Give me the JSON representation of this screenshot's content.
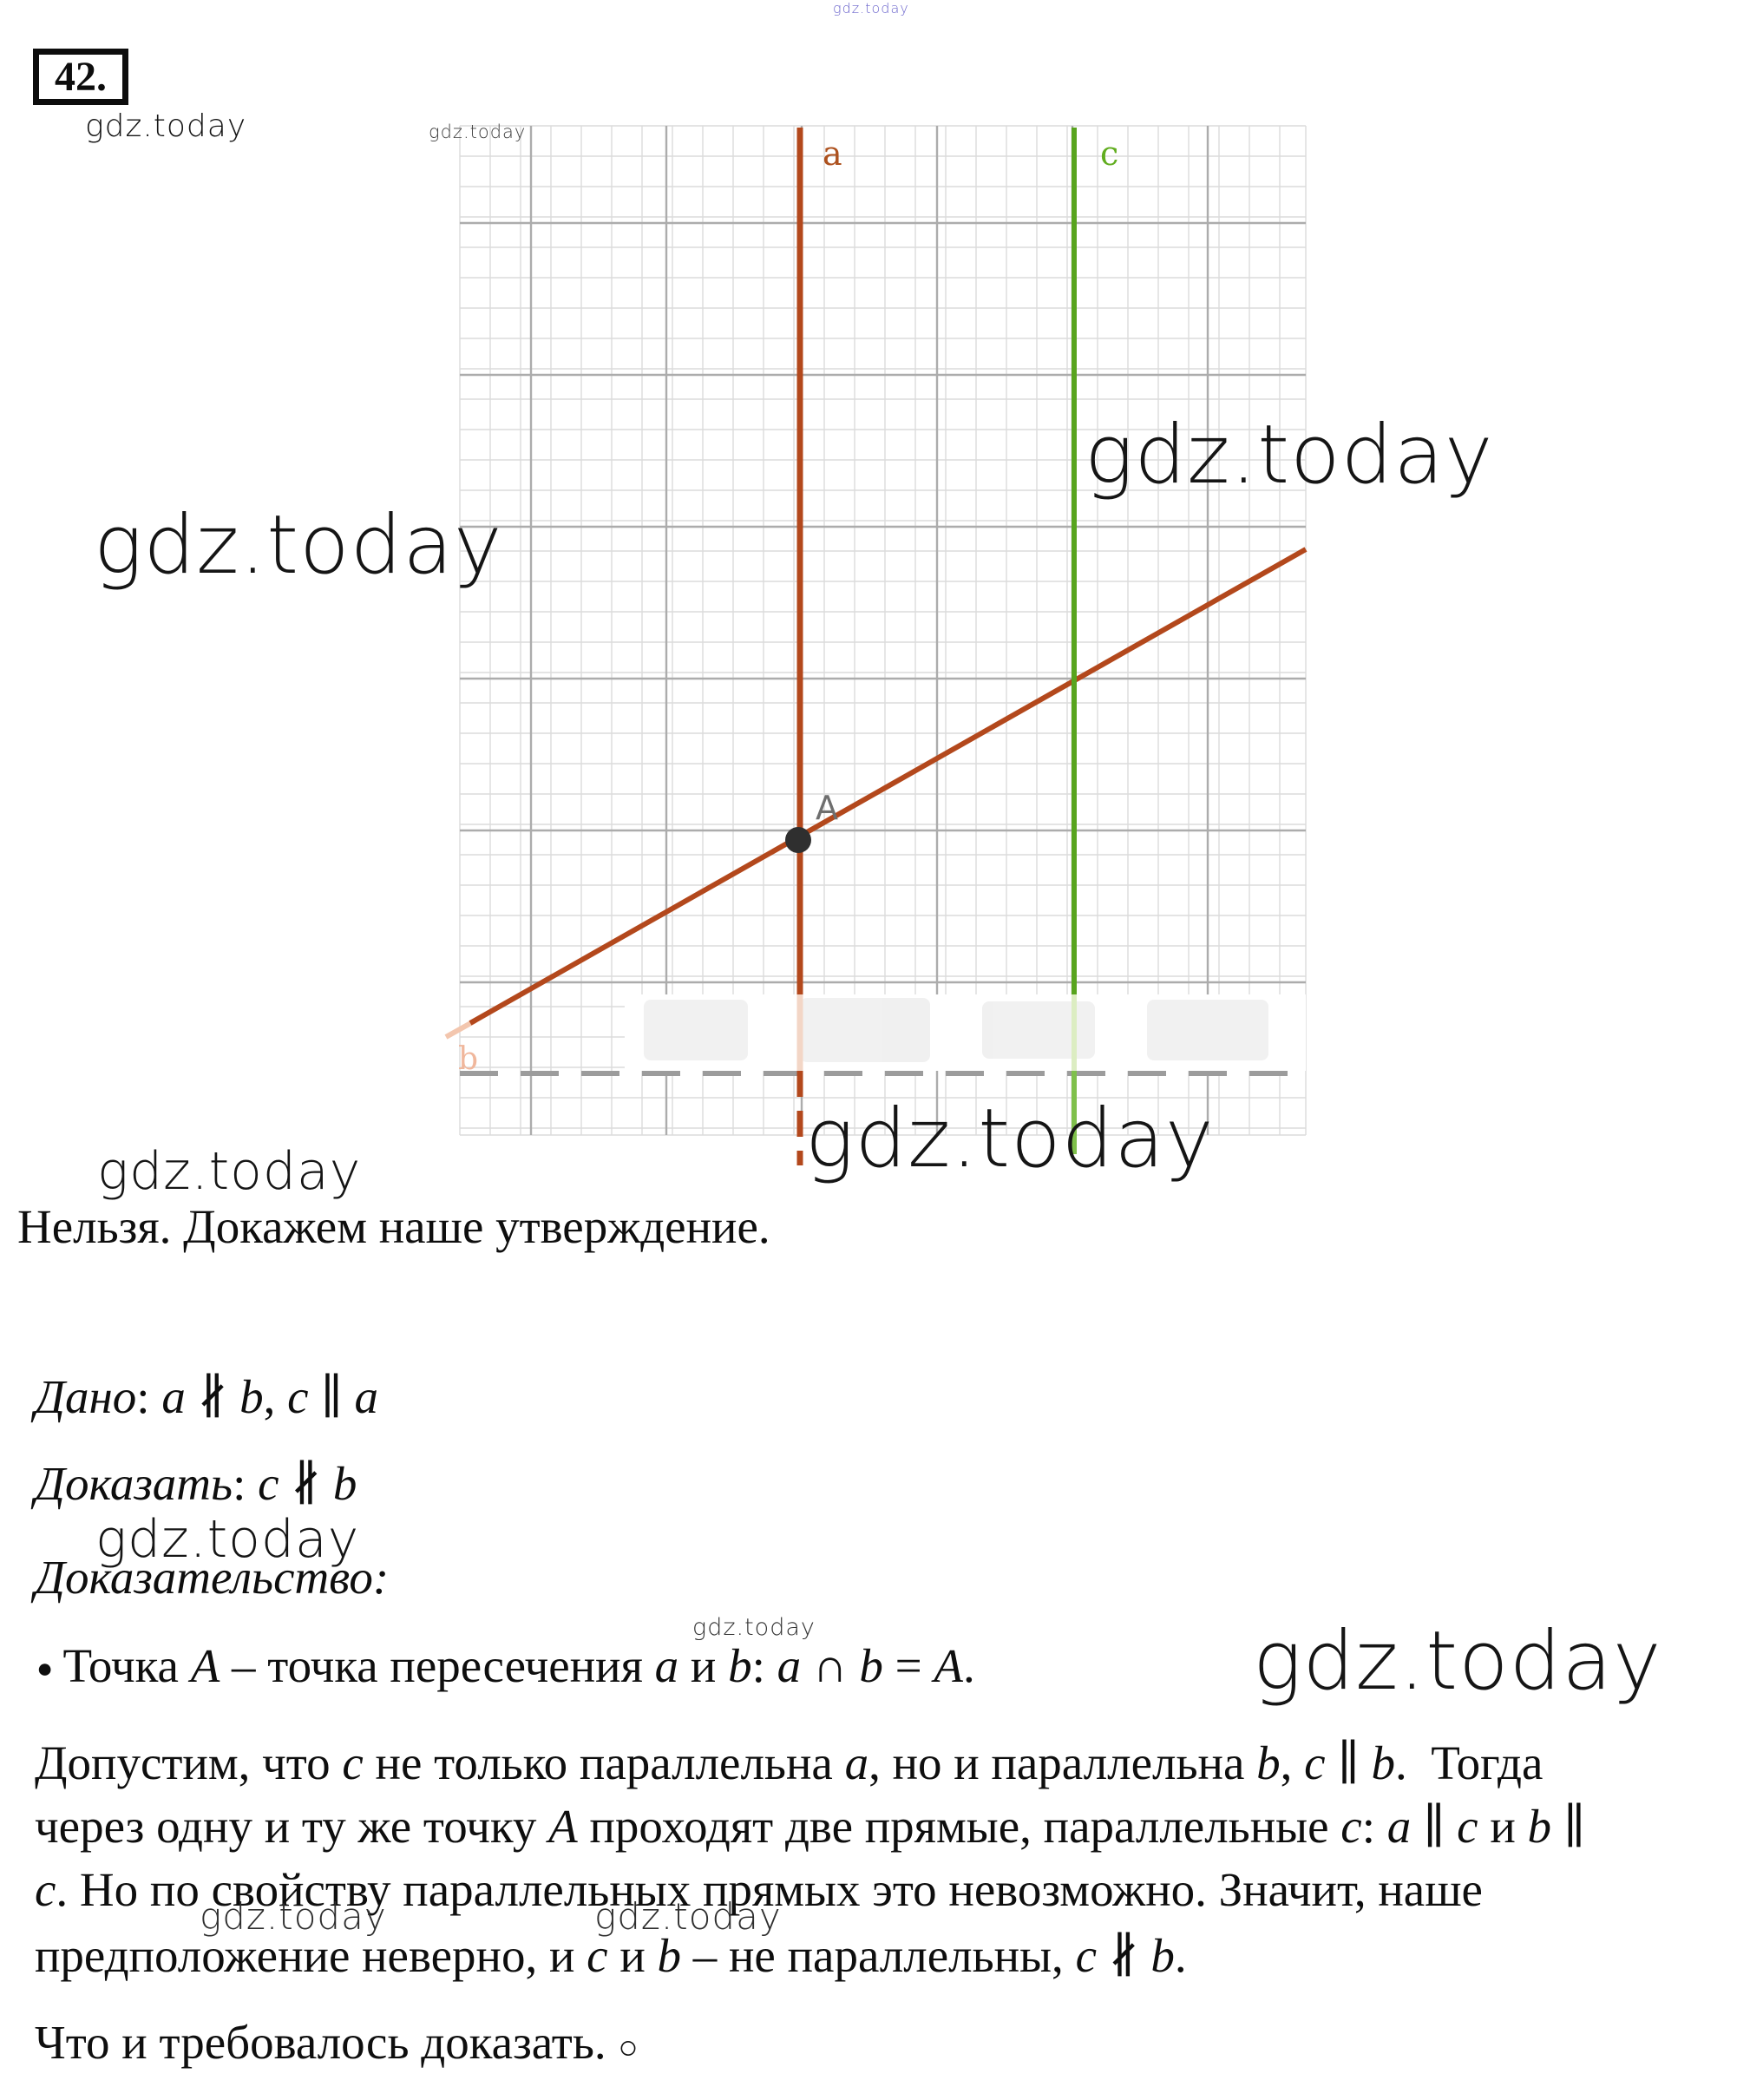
{
  "header": {
    "problem_number": "42."
  },
  "watermark": {
    "text": "gdz.today"
  },
  "figure": {
    "label_a": "a",
    "label_b": "b",
    "label_c": "c",
    "label_point": "A",
    "colors": {
      "line_a": "#b3481c",
      "line_a_pale": "#f3d6c6",
      "line_b": "#b3481c",
      "line_b_tip": "#f3c6ae",
      "line_c": "#58a41e",
      "line_c_pale": "#dcedc2",
      "line_c_light": "#7fc04b",
      "label_a": "#ad511e",
      "label_b": "#f0b79c",
      "label_c": "#61ad1f",
      "point": "#2f2f2f",
      "label_point": "#6e6e6e",
      "grid_light": "#dcdcdc",
      "grid_heavy": "#acacac",
      "dashed_line": "#9c9c9c"
    }
  },
  "page_colors": {
    "text": "#0e0e0e",
    "watermark_dark": "#151515",
    "watermark_blue": "#5952c6"
  },
  "solution": {
    "intro": "Нельзя. Докажем наше утверждение.",
    "given": [
      {
        "t": "Дано",
        "i": true
      },
      {
        "t": ": ",
        "i": false
      },
      {
        "t": "a",
        "i": true
      },
      {
        "t": " ∦ ",
        "i": false
      },
      {
        "t": "b",
        "i": true
      },
      {
        "t": ", ",
        "i": false
      },
      {
        "t": "c",
        "i": true
      },
      {
        "t": " ∥ ",
        "i": false
      },
      {
        "t": "a",
        "i": true
      }
    ],
    "prove": [
      {
        "t": "Доказать",
        "i": true
      },
      {
        "t": ": ",
        "i": false
      },
      {
        "t": "c",
        "i": true
      },
      {
        "t": " ∦ ",
        "i": false
      },
      {
        "t": "b",
        "i": true
      }
    ],
    "proof_heading": [
      {
        "t": "Доказательство:",
        "i": true
      }
    ],
    "bullet_glyph": "●",
    "bullet_line": [
      {
        "t": "Точка ",
        "i": false
      },
      {
        "t": "A",
        "i": true
      },
      {
        "t": " – точка пересечения ",
        "i": false
      },
      {
        "t": "a",
        "i": true
      },
      {
        "t": " и ",
        "i": false
      },
      {
        "t": "b",
        "i": true
      },
      {
        "t": ": ",
        "i": false
      },
      {
        "t": "a",
        "i": true
      },
      {
        "t": " ∩ ",
        "i": false
      },
      {
        "t": "b",
        "i": true
      },
      {
        "t": " = ",
        "i": false
      },
      {
        "t": "A",
        "i": true
      },
      {
        "t": ".",
        "i": false
      }
    ],
    "paragraph_lines": [
      [
        {
          "t": "Допустим, что ",
          "i": false
        },
        {
          "t": "c",
          "i": true
        },
        {
          "t": " не только параллельна ",
          "i": false
        },
        {
          "t": "a",
          "i": true
        },
        {
          "t": ", но и параллельна ",
          "i": false
        },
        {
          "t": "b",
          "i": true
        },
        {
          "t": ", ",
          "i": false
        },
        {
          "t": "c",
          "i": true
        },
        {
          "t": " ∥ ",
          "i": false
        },
        {
          "t": "b",
          "i": true
        },
        {
          "t": ".  Тогда",
          "i": false
        }
      ],
      [
        {
          "t": "через одну и ту же точку ",
          "i": false
        },
        {
          "t": "A",
          "i": true
        },
        {
          "t": " проходят две прямые, параллельные ",
          "i": false
        },
        {
          "t": "c",
          "i": true
        },
        {
          "t": ": ",
          "i": false
        },
        {
          "t": "a",
          "i": true
        },
        {
          "t": " ∥ ",
          "i": false
        },
        {
          "t": "c",
          "i": true
        },
        {
          "t": " и ",
          "i": false
        },
        {
          "t": "b",
          "i": true
        },
        {
          "t": " ∥",
          "i": false
        }
      ],
      [
        {
          "t": "c",
          "i": true
        },
        {
          "t": ". Но по свойству параллельных прямых это невозможно. Значит, наше",
          "i": false
        }
      ],
      [
        {
          "t": "предположение неверно, и ",
          "i": false
        },
        {
          "t": "c",
          "i": true
        },
        {
          "t": " и ",
          "i": false
        },
        {
          "t": "b",
          "i": true
        },
        {
          "t": " – не параллельны, ",
          "i": false
        },
        {
          "t": "c",
          "i": true
        },
        {
          "t": " ∦ ",
          "i": false
        },
        {
          "t": "b",
          "i": true
        },
        {
          "t": ".",
          "i": false
        }
      ]
    ],
    "qed": "Что и требовалось доказать. ",
    "qed_mark": "○"
  }
}
